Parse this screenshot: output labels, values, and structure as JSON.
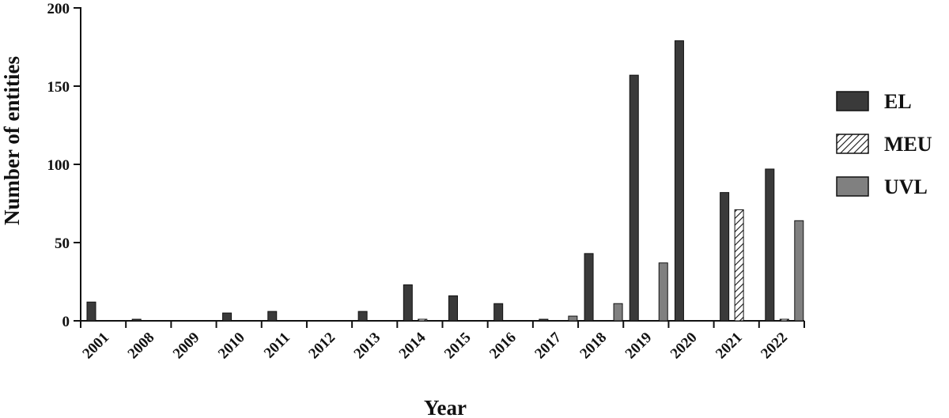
{
  "chart_data": {
    "type": "bar",
    "xlabel": "Year",
    "ylabel": "Number of entities",
    "ylim": [
      0,
      200
    ],
    "yticks": [
      0,
      50,
      100,
      150,
      200
    ],
    "categories": [
      "2001",
      "2008",
      "2009",
      "2010",
      "2011",
      "2012",
      "2013",
      "2014",
      "2015",
      "2016",
      "2017",
      "2018",
      "2019",
      "2020",
      "2021",
      "2022"
    ],
    "series": [
      {
        "name": "EL",
        "color": "#3a3a3a",
        "pattern": "solid",
        "values": [
          12,
          1,
          0,
          5,
          6,
          0,
          6,
          23,
          16,
          11,
          1,
          43,
          157,
          179,
          82,
          97
        ]
      },
      {
        "name": "MEU",
        "color": "#ffffff",
        "pattern": "hatch",
        "values": [
          0,
          0,
          0,
          0,
          0,
          0,
          0,
          1,
          0,
          0,
          0,
          0,
          0,
          0,
          71,
          1
        ]
      },
      {
        "name": "UVL",
        "color": "#808080",
        "pattern": "solid",
        "values": [
          0,
          0,
          0,
          0,
          0,
          0,
          0,
          0,
          0,
          0,
          3,
          11,
          37,
          0,
          0,
          64
        ]
      }
    ],
    "legend_position": "right",
    "grid": false
  }
}
